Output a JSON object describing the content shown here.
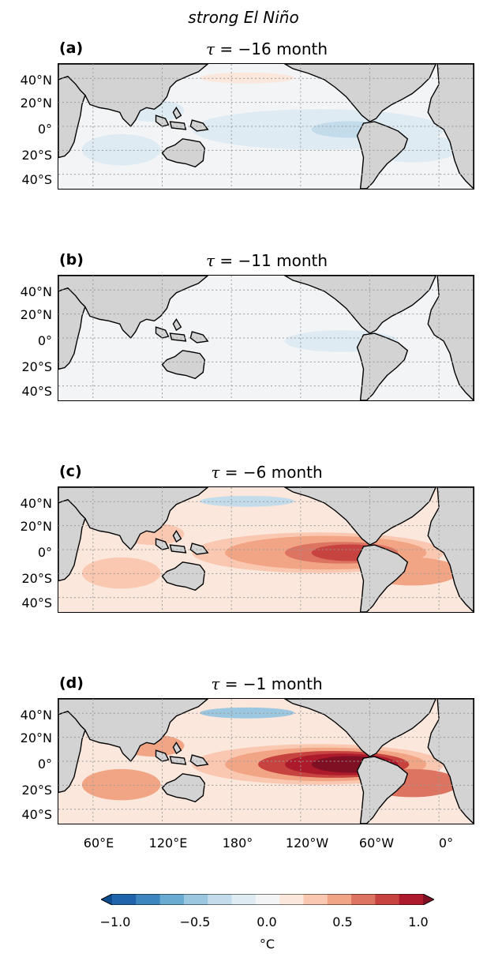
{
  "figure": {
    "suptitle": "strong El Niño",
    "panels": [
      {
        "label": "(a)",
        "tau": "−16",
        "unit": "month",
        "amplitude": 0.25,
        "sign": -1
      },
      {
        "label": "(b)",
        "tau": "−11",
        "unit": "month",
        "amplitude": 0.1,
        "sign": -1
      },
      {
        "label": "(c)",
        "tau": "−6",
        "unit": "month",
        "amplitude": 0.75,
        "sign": 1
      },
      {
        "label": "(d)",
        "tau": "−1",
        "unit": "month",
        "amplitude": 1.0,
        "sign": 1
      }
    ],
    "lat_ticks": [
      "40°N",
      "20°N",
      "0°",
      "20°S",
      "40°S"
    ],
    "lon_ticks": [
      "60°E",
      "120°E",
      "180°",
      "120°W",
      "60°W",
      "0°"
    ]
  },
  "colorbar": {
    "ticks": [
      "−1.0",
      "−0.5",
      "0.0",
      "0.5",
      "1.0"
    ],
    "unit": "°C",
    "range": [
      -1.0,
      1.0
    ],
    "colors": [
      "#0d4d8e",
      "#2065ab",
      "#3a86bd",
      "#6aabd2",
      "#9bc7e0",
      "#c2dceb",
      "#deebf3",
      "#f2f4f6",
      "#fbe7dc",
      "#fac8b0",
      "#f2a585",
      "#dd7361",
      "#c6433f",
      "#ac1a2c",
      "#7f0f23"
    ]
  },
  "colors": {
    "land": "#d3d3d3",
    "coast": "#000000",
    "grid": "#9a9a9a"
  }
}
